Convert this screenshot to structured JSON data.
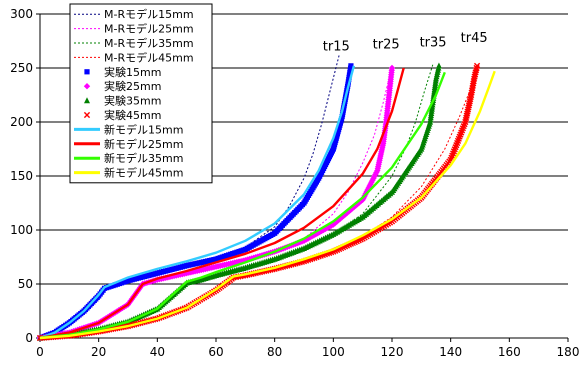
{
  "chart_data": {
    "type": "line",
    "title": "",
    "xlabel": "",
    "ylabel": "",
    "xlim": [
      0,
      180
    ],
    "ylim": [
      0,
      300
    ],
    "xticks": [
      0,
      20,
      40,
      60,
      80,
      100,
      120,
      140,
      160,
      180
    ],
    "yticks": [
      0,
      50,
      100,
      150,
      200,
      250,
      300
    ],
    "grid": "horizontal",
    "legend_position": "top-left",
    "annotations": [
      {
        "text": "tr15",
        "x": 101,
        "y": 266
      },
      {
        "text": "tr25",
        "x": 118,
        "y": 268
      },
      {
        "text": "tr35",
        "x": 134,
        "y": 270
      },
      {
        "text": "tr45",
        "x": 148,
        "y": 274
      }
    ],
    "series": [
      {
        "name": "M-Rモデル15mm",
        "kind": "dotted",
        "color": "#000080",
        "x": [
          0,
          5,
          10,
          15,
          20,
          22,
          30,
          40,
          50,
          60,
          70,
          80,
          85,
          90,
          93,
          96,
          99,
          102
        ],
        "y": [
          0,
          5,
          14,
          25,
          40,
          46,
          54,
          61,
          67,
          74,
          84,
          103,
          122,
          148,
          170,
          198,
          230,
          262
        ]
      },
      {
        "name": "M-Rモデル25mm",
        "kind": "dotted",
        "color": "#ff00ff",
        "x": [
          0,
          10,
          20,
          30,
          35,
          40,
          50,
          60,
          70,
          80,
          90,
          100,
          105,
          110,
          114,
          117,
          120
        ],
        "y": [
          0,
          5,
          14,
          31,
          49,
          54,
          60,
          66,
          72,
          80,
          92,
          115,
          135,
          162,
          188,
          218,
          252
        ]
      },
      {
        "name": "M-Rモデル35mm",
        "kind": "dotted",
        "color": "#008000",
        "x": [
          0,
          10,
          20,
          30,
          40,
          50,
          55,
          60,
          70,
          80,
          90,
          100,
          110,
          120,
          125,
          128,
          131,
          134
        ],
        "y": [
          0,
          3,
          8,
          15,
          27,
          50,
          53,
          57,
          64,
          72,
          82,
          96,
          115,
          150,
          178,
          200,
          228,
          254
        ]
      },
      {
        "name": "M-Rモデル45mm",
        "kind": "dotted",
        "color": "#ff0000",
        "x": [
          0,
          10,
          20,
          30,
          40,
          50,
          60,
          66,
          70,
          80,
          90,
          100,
          110,
          120,
          130,
          138,
          143,
          147,
          150
        ],
        "y": [
          0,
          2,
          6,
          11,
          18,
          28,
          45,
          57,
          58,
          64,
          71,
          81,
          94,
          112,
          140,
          175,
          205,
          232,
          252
        ]
      },
      {
        "name": "実験15mm",
        "kind": "markers",
        "marker": "square",
        "color": "#0000ff",
        "x": [
          0,
          5,
          10,
          15,
          20,
          22,
          30,
          40,
          50,
          60,
          70,
          80,
          90,
          95,
          100,
          103,
          105,
          106
        ],
        "y": [
          0,
          5,
          14,
          25,
          39,
          46,
          53,
          60,
          67,
          73,
          82,
          97,
          125,
          148,
          175,
          205,
          235,
          252
        ]
      },
      {
        "name": "実験25mm",
        "kind": "markers",
        "marker": "diamond",
        "color": "#ff00ff",
        "x": [
          0,
          10,
          20,
          30,
          35,
          40,
          50,
          60,
          70,
          80,
          90,
          100,
          110,
          115,
          117,
          118,
          119,
          120
        ],
        "y": [
          0,
          5,
          14,
          31,
          50,
          54,
          60,
          66,
          72,
          80,
          90,
          105,
          128,
          155,
          180,
          200,
          225,
          250
        ]
      },
      {
        "name": "実験35mm",
        "kind": "markers",
        "marker": "triangle",
        "color": "#008000",
        "x": [
          0,
          10,
          20,
          30,
          40,
          50,
          55,
          60,
          70,
          80,
          90,
          100,
          110,
          120,
          130,
          133,
          134,
          135,
          136
        ],
        "y": [
          0,
          3,
          8,
          15,
          27,
          51,
          54,
          58,
          65,
          73,
          83,
          96,
          112,
          135,
          175,
          200,
          220,
          240,
          252
        ]
      },
      {
        "name": "実験45mm",
        "kind": "markers",
        "marker": "x",
        "color": "#ff0000",
        "x": [
          0,
          10,
          20,
          30,
          40,
          50,
          60,
          66,
          70,
          80,
          90,
          100,
          110,
          120,
          130,
          140,
          145,
          147,
          148,
          149
        ],
        "y": [
          0,
          2,
          6,
          11,
          18,
          28,
          44,
          56,
          58,
          64,
          71,
          80,
          92,
          108,
          130,
          165,
          200,
          225,
          240,
          252
        ]
      },
      {
        "name": "新モデル15mm",
        "kind": "solid",
        "color": "#33ccff",
        "x": [
          0,
          5,
          10,
          15,
          20,
          22,
          30,
          40,
          50,
          60,
          70,
          80,
          90,
          95,
          100,
          103,
          105,
          107
        ],
        "y": [
          0,
          5,
          14,
          25,
          40,
          47,
          56,
          64,
          71,
          79,
          90,
          106,
          133,
          155,
          185,
          210,
          232,
          252
        ]
      },
      {
        "name": "新モデル25mm",
        "kind": "solid",
        "color": "#ff0000",
        "x": [
          0,
          10,
          20,
          30,
          35,
          40,
          50,
          60,
          70,
          80,
          90,
          100,
          110,
          115,
          120,
          122,
          124
        ],
        "y": [
          0,
          5,
          14,
          31,
          50,
          55,
          62,
          70,
          78,
          88,
          102,
          122,
          152,
          175,
          210,
          230,
          250
        ]
      },
      {
        "name": "新モデル35mm",
        "kind": "solid",
        "color": "#33ff00",
        "x": [
          0,
          10,
          20,
          30,
          40,
          50,
          55,
          60,
          70,
          80,
          90,
          100,
          110,
          120,
          130,
          135,
          138
        ],
        "y": [
          0,
          3,
          8,
          15,
          27,
          52,
          56,
          61,
          70,
          80,
          92,
          108,
          130,
          158,
          198,
          225,
          246
        ]
      },
      {
        "name": "新モデル45mm",
        "kind": "solid",
        "color": "#ffff00",
        "x": [
          0,
          10,
          20,
          30,
          40,
          50,
          60,
          66,
          70,
          80,
          90,
          100,
          110,
          120,
          130,
          140,
          145,
          150,
          153,
          155
        ],
        "y": [
          0,
          2,
          6,
          11,
          18,
          28,
          45,
          57,
          59,
          65,
          73,
          82,
          95,
          110,
          130,
          160,
          180,
          210,
          232,
          247
        ]
      }
    ]
  }
}
